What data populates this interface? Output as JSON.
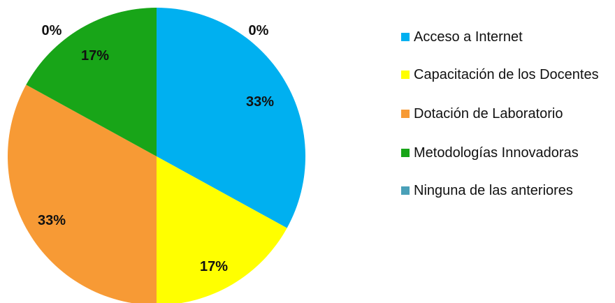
{
  "chart_data": {
    "type": "pie",
    "title": "",
    "slices": [
      {
        "label": "Acceso a Internet",
        "value": 33,
        "display": "33%",
        "color": "#00b0f0"
      },
      {
        "label": "Capacitación de los Docentes",
        "value": 17,
        "display": "17%",
        "color": "#ffff00"
      },
      {
        "label": "Dotación de Laboratorio",
        "value": 33,
        "display": "33%",
        "color": "#f79a35"
      },
      {
        "label": "Metodologías Innovadoras",
        "value": 17,
        "display": "17%",
        "color": "#18a518"
      },
      {
        "label": "Ninguna de las anteriores",
        "value": 0,
        "display": "0%",
        "color": "#4aa0b8"
      }
    ],
    "extra_labels": [
      "0%"
    ],
    "legend_position": "right"
  }
}
